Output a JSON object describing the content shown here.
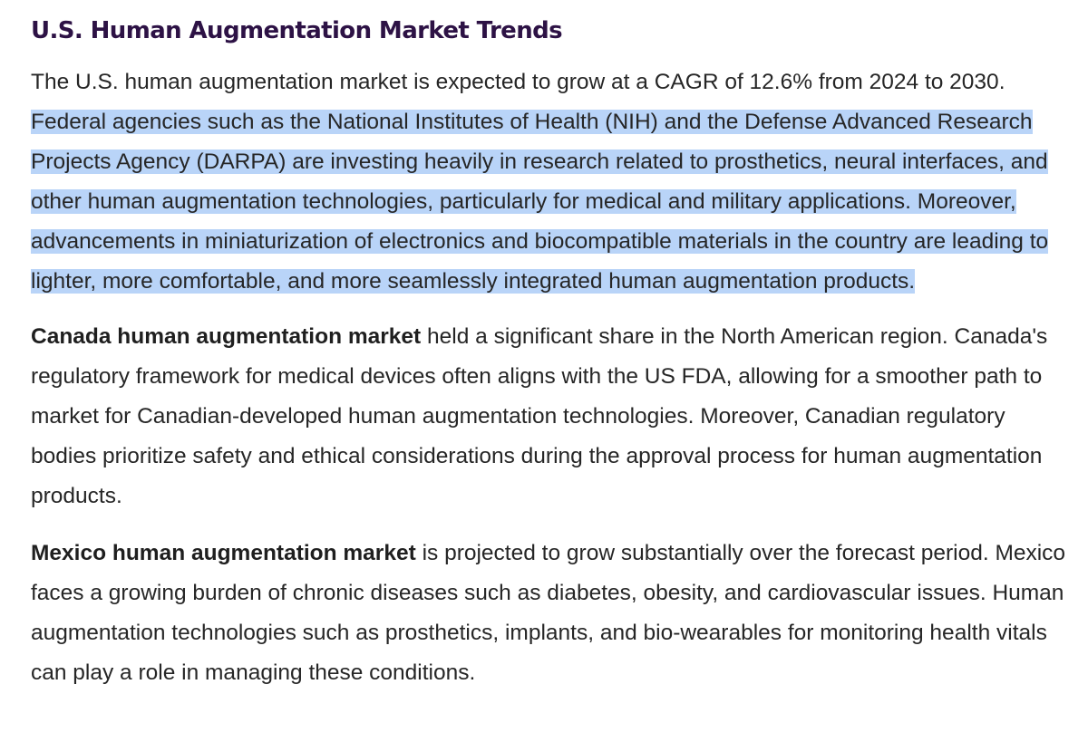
{
  "heading": "U.S. Human Augmentation Market Trends",
  "us_paragraph": {
    "intro": "The U.S. human augmentation market is expected to grow at a CAGR of 12.6% from 2024 to 2030. ",
    "selected": "Federal agencies such as the National Institutes of Health (NIH) and the Defense Advanced Research Projects Agency (DARPA) are investing heavily in research related to prosthetics, neural interfaces, and other human augmentation technologies, particularly for medical and military applications. Moreover, advancements in miniaturization of electronics and biocompatible materials in the country are leading to lighter, more comfortable, and more seamlessly integrated human augmentation products."
  },
  "canada_paragraph": {
    "bold": "Canada human augmentation market",
    "text": " held a significant share in the North American region. Canada's regulatory framework for medical devices often aligns with the US FDA, allowing for a smoother path to market for Canadian-developed human augmentation technologies. Moreover, Canadian regulatory bodies prioritize safety and ethical considerations during the approval process for human augmentation products."
  },
  "mexico_paragraph": {
    "bold": "Mexico human augmentation market",
    "text": " is projected to grow substantially over the forecast period. Mexico faces a growing burden of chronic diseases such as diabetes, obesity, and cardiovascular issues. Human augmentation technologies such as prosthetics, implants, and bio-wearables for monitoring health vitals can play a role in managing these conditions."
  },
  "colors": {
    "heading": "#2d1245",
    "body_text": "#262626",
    "selection_highlight": "#b9d4f8"
  }
}
